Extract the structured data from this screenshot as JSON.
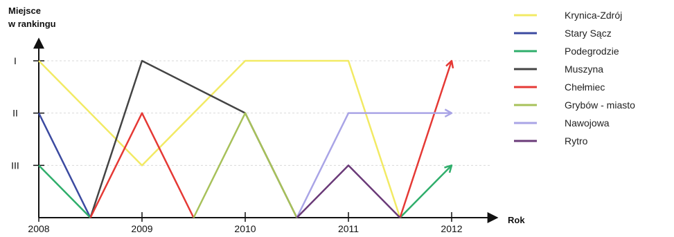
{
  "chart_data": {
    "type": "line",
    "ylabel_lines": [
      "Miejsce",
      "w rankingu"
    ],
    "xlabel": "Rok",
    "x_ticks": [
      "2008",
      "2009",
      "2010",
      "2011",
      "2012"
    ],
    "y_ticks": [
      {
        "label": "I",
        "value": 1
      },
      {
        "label": "II",
        "value": 2
      },
      {
        "label": "III",
        "value": 3
      }
    ],
    "ylim": [
      1,
      4
    ],
    "xlim": [
      2008,
      2012
    ],
    "grid": "horizontal dashed",
    "legend_position": "right",
    "series": [
      {
        "name": "Krynica-Zdrój",
        "color": "#f2ea64",
        "points": [
          [
            2008,
            1
          ],
          [
            2009,
            3
          ],
          [
            2010,
            1
          ],
          [
            2011,
            1
          ],
          [
            2011.5,
            4
          ]
        ]
      },
      {
        "name": "Stary Sącz",
        "color": "#3b4aa0",
        "points": [
          [
            2008,
            2
          ],
          [
            2008.5,
            4
          ]
        ]
      },
      {
        "name": "Podegrodzie",
        "color": "#2fae6b",
        "points": [
          [
            2008,
            3
          ],
          [
            2008.5,
            4
          ]
        ],
        "arrow_from": [
          2011.5,
          4
        ],
        "arrow_to": [
          2012,
          3
        ]
      },
      {
        "name": "Muszyna",
        "color": "#444444",
        "points": [
          [
            2008.5,
            4
          ],
          [
            2009,
            1
          ],
          [
            2010,
            2
          ],
          [
            2010.5,
            4
          ]
        ]
      },
      {
        "name": "Chełmiec",
        "color": "#e53935",
        "points": [
          [
            2008.5,
            4
          ],
          [
            2009,
            2
          ],
          [
            2009.5,
            4
          ]
        ],
        "arrow_from": [
          2011.5,
          4
        ],
        "arrow_to": [
          2012,
          1
        ]
      },
      {
        "name": "Grybów - miasto",
        "color": "#a7c15a",
        "points": [
          [
            2009.5,
            4
          ],
          [
            2010,
            2
          ],
          [
            2010.5,
            4
          ]
        ]
      },
      {
        "name": "Nawojowa",
        "color": "#a9a4e6",
        "points": [
          [
            2010.5,
            4
          ],
          [
            2011,
            2
          ],
          [
            2012,
            2
          ]
        ],
        "end_arrow": true
      },
      {
        "name": "Rytro",
        "color": "#6a3a78",
        "points": [
          [
            2010.5,
            4
          ],
          [
            2011,
            3
          ],
          [
            2011.5,
            4
          ]
        ]
      }
    ]
  }
}
